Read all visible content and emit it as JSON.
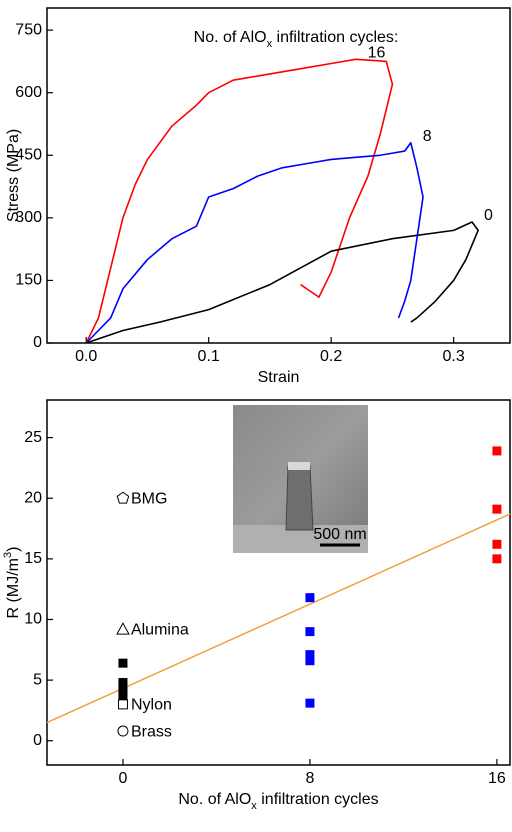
{
  "chart_data": [
    {
      "type": "line",
      "title": "No. of AlOx infiltration cycles:",
      "x_label": "Strain",
      "y_label": "Stress (MPa)",
      "xlim": [
        -0.032,
        0.346
      ],
      "ylim": [
        0,
        803
      ],
      "xticks": [
        {
          "value": 0,
          "label": "0.0"
        },
        0.1,
        0.2,
        0.3
      ],
      "yticks": [
        0,
        150,
        300,
        450,
        600,
        750
      ],
      "series": [
        {
          "name": "16",
          "color": "#ff0000",
          "x": [
            0,
            0.01,
            0.02,
            0.03,
            0.04,
            0.05,
            0.07,
            0.09,
            0.1,
            0.12,
            0.15,
            0.18,
            0.2,
            0.22,
            0.245,
            0.25,
            0.24,
            0.23,
            0.215,
            0.2,
            0.19,
            0.18,
            0.175
          ],
          "values": [
            0,
            60,
            180,
            300,
            380,
            440,
            520,
            570,
            600,
            630,
            645,
            660,
            670,
            680,
            675,
            620,
            500,
            400,
            300,
            170,
            110,
            130,
            140
          ]
        },
        {
          "name": "8",
          "color": "#0000ff",
          "x": [
            0,
            0.02,
            0.03,
            0.05,
            0.07,
            0.09,
            0.1,
            0.12,
            0.14,
            0.16,
            0.18,
            0.2,
            0.22,
            0.24,
            0.26,
            0.265,
            0.27,
            0.275,
            0.27,
            0.265,
            0.26,
            0.255
          ],
          "values": [
            0,
            60,
            130,
            200,
            250,
            280,
            350,
            370,
            400,
            420,
            430,
            440,
            445,
            450,
            460,
            480,
            420,
            350,
            250,
            150,
            100,
            60
          ]
        },
        {
          "name": "0",
          "color": "#000000",
          "x": [
            0,
            0.03,
            0.06,
            0.1,
            0.15,
            0.2,
            0.25,
            0.3,
            0.315,
            0.32,
            0.31,
            0.3,
            0.285,
            0.27,
            0.265
          ],
          "values": [
            0,
            30,
            50,
            80,
            140,
            220,
            250,
            270,
            290,
            270,
            200,
            150,
            100,
            60,
            50
          ]
        }
      ]
    },
    {
      "type": "scatter",
      "x_label": "No. of AlOx infiltration cycles",
      "y_label": "R (MJ/m3)",
      "xlim": [
        -3.25,
        16.56
      ],
      "ylim": [
        -2,
        28.1
      ],
      "xticks": [
        0,
        8,
        16
      ],
      "yticks": [
        0,
        5,
        10,
        15,
        20,
        25
      ],
      "inset_label": "500 nm",
      "series": [
        {
          "type": "line",
          "color": "#f0a040",
          "x": [
            -3.25,
            16.56
          ],
          "values": [
            1.5,
            18.7
          ]
        },
        {
          "marker": "square",
          "color": "#000000",
          "x": [
            0,
            0,
            0,
            0,
            0
          ],
          "values": [
            6.4,
            4.8,
            4.4,
            4,
            3.6
          ]
        },
        {
          "marker": "square",
          "color": "#0000ff",
          "x": [
            8,
            8,
            8,
            8,
            8
          ],
          "values": [
            11.8,
            9,
            7.1,
            6.6,
            3.1
          ]
        },
        {
          "marker": "square",
          "color": "#ff0000",
          "x": [
            16,
            16,
            16,
            16
          ],
          "values": [
            23.9,
            19.1,
            16.2,
            15
          ]
        },
        {
          "name": "BMG",
          "marker": "pentagon",
          "color": "#000000",
          "x": [
            0
          ],
          "values": [
            20
          ]
        },
        {
          "name": "Alumina",
          "marker": "triangle",
          "color": "#000000",
          "x": [
            0
          ],
          "values": [
            9.2
          ]
        },
        {
          "name": "Nylon",
          "marker": "open-square",
          "color": "#000000",
          "x": [
            0
          ],
          "values": [
            3
          ]
        },
        {
          "name": "Brass",
          "marker": "circle",
          "color": "#000000",
          "x": [
            0
          ],
          "values": [
            0.8
          ]
        }
      ]
    }
  ]
}
